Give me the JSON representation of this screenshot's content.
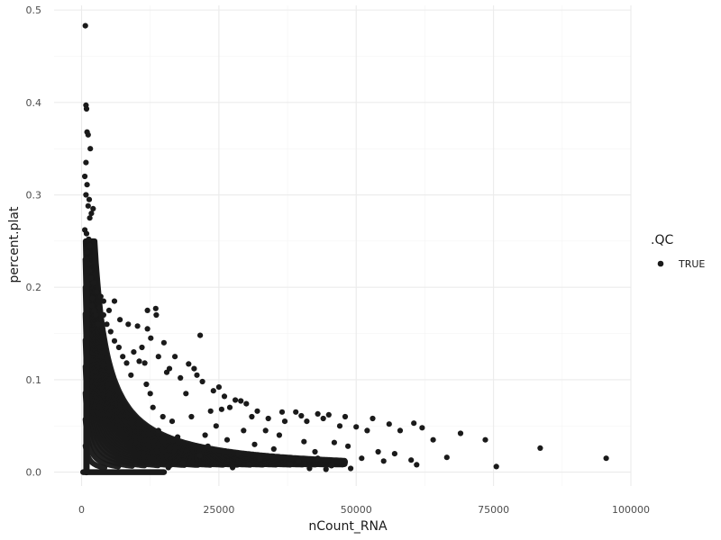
{
  "chart_data": {
    "type": "scatter",
    "xlabel": "nCount_RNA",
    "ylabel": "percent.plat",
    "xlim": [
      -5000,
      100000
    ],
    "ylim": [
      -0.015,
      0.505
    ],
    "x_ticks": [
      0,
      25000,
      50000,
      75000,
      100000
    ],
    "x_tick_labels": [
      "0",
      "25000",
      "50000",
      "75000",
      "100000"
    ],
    "y_ticks": [
      0.0,
      0.1,
      0.2,
      0.3,
      0.4,
      0.5
    ],
    "y_tick_labels": [
      "0.0",
      "0.1",
      "0.2",
      "0.3",
      "0.4",
      "0.5"
    ],
    "grid": true,
    "point_color": "#1a1a1a",
    "legend": {
      "title": ".QC",
      "placement": "right",
      "entries": [
        {
          "label": "TRUE",
          "color": "#1a1a1a"
        }
      ]
    },
    "series": [
      {
        "name": "TRUE",
        "points": [
          [
            700,
            0.483
          ],
          [
            800,
            0.397
          ],
          [
            900,
            0.393
          ],
          [
            1000,
            0.368
          ],
          [
            1200,
            0.365
          ],
          [
            1600,
            0.35
          ],
          [
            800,
            0.335
          ],
          [
            600,
            0.32
          ],
          [
            1000,
            0.311
          ],
          [
            800,
            0.3
          ],
          [
            1400,
            0.295
          ],
          [
            1200,
            0.288
          ],
          [
            2100,
            0.285
          ],
          [
            1800,
            0.28
          ],
          [
            1500,
            0.275
          ],
          [
            600,
            0.262
          ],
          [
            900,
            0.258
          ],
          [
            1300,
            0.252
          ],
          [
            1500,
            0.245
          ],
          [
            1000,
            0.238
          ],
          [
            700,
            0.23
          ],
          [
            1200,
            0.225
          ],
          [
            1400,
            0.218
          ],
          [
            1700,
            0.21
          ],
          [
            2200,
            0.205
          ],
          [
            900,
            0.2
          ],
          [
            2800,
            0.195
          ],
          [
            3500,
            0.19
          ],
          [
            2000,
            0.188
          ],
          [
            4000,
            0.185
          ],
          [
            6000,
            0.185
          ],
          [
            5000,
            0.175
          ],
          [
            7000,
            0.165
          ],
          [
            12000,
            0.175
          ],
          [
            13500,
            0.177
          ],
          [
            13600,
            0.17
          ],
          [
            8500,
            0.16
          ],
          [
            10200,
            0.158
          ],
          [
            12000,
            0.155
          ],
          [
            21600,
            0.148
          ],
          [
            12600,
            0.145
          ],
          [
            15000,
            0.14
          ],
          [
            11000,
            0.135
          ],
          [
            9500,
            0.13
          ],
          [
            17000,
            0.125
          ],
          [
            14000,
            0.125
          ],
          [
            10500,
            0.12
          ],
          [
            11500,
            0.118
          ],
          [
            19500,
            0.117
          ],
          [
            16000,
            0.112
          ],
          [
            20500,
            0.112
          ],
          [
            15500,
            0.108
          ],
          [
            21000,
            0.105
          ],
          [
            18000,
            0.102
          ],
          [
            22000,
            0.098
          ],
          [
            25000,
            0.092
          ],
          [
            24000,
            0.088
          ],
          [
            19000,
            0.085
          ],
          [
            26000,
            0.082
          ],
          [
            28000,
            0.078
          ],
          [
            29000,
            0.077
          ],
          [
            30000,
            0.074
          ],
          [
            27000,
            0.07
          ],
          [
            25500,
            0.068
          ],
          [
            23500,
            0.066
          ],
          [
            32000,
            0.066
          ],
          [
            36500,
            0.065
          ],
          [
            39000,
            0.065
          ],
          [
            40000,
            0.061
          ],
          [
            43000,
            0.063
          ],
          [
            45000,
            0.062
          ],
          [
            48000,
            0.06
          ],
          [
            53000,
            0.058
          ],
          [
            60500,
            0.053
          ],
          [
            31000,
            0.06
          ],
          [
            34000,
            0.058
          ],
          [
            37000,
            0.055
          ],
          [
            41000,
            0.055
          ],
          [
            44000,
            0.058
          ],
          [
            47000,
            0.05
          ],
          [
            50000,
            0.049
          ],
          [
            52000,
            0.045
          ],
          [
            56000,
            0.052
          ],
          [
            58000,
            0.045
          ],
          [
            62000,
            0.048
          ],
          [
            64000,
            0.035
          ],
          [
            69000,
            0.042
          ],
          [
            73500,
            0.035
          ],
          [
            83500,
            0.026
          ],
          [
            95500,
            0.015
          ],
          [
            75500,
            0.006
          ],
          [
            66500,
            0.016
          ],
          [
            61000,
            0.008
          ],
          [
            60000,
            0.013
          ],
          [
            57000,
            0.02
          ],
          [
            55000,
            0.012
          ],
          [
            54000,
            0.022
          ],
          [
            51000,
            0.015
          ],
          [
            49000,
            0.004
          ],
          [
            48500,
            0.028
          ],
          [
            46000,
            0.032
          ],
          [
            45500,
            0.007
          ],
          [
            44500,
            0.003
          ],
          [
            43000,
            0.015
          ],
          [
            42500,
            0.022
          ],
          [
            41500,
            0.004
          ],
          [
            40500,
            0.033
          ],
          [
            39500,
            0.012
          ],
          [
            38000,
            0.008
          ],
          [
            36000,
            0.04
          ],
          [
            35000,
            0.025
          ],
          [
            33500,
            0.045
          ],
          [
            32500,
            0.015
          ],
          [
            31500,
            0.03
          ],
          [
            30500,
            0.008
          ],
          [
            29500,
            0.045
          ],
          [
            28500,
            0.02
          ],
          [
            27500,
            0.005
          ],
          [
            26500,
            0.035
          ],
          [
            24500,
            0.05
          ],
          [
            23000,
            0.028
          ],
          [
            22500,
            0.04
          ],
          [
            21500,
            0.018
          ],
          [
            20000,
            0.06
          ],
          [
            18500,
            0.01
          ],
          [
            17500,
            0.038
          ],
          [
            16500,
            0.055
          ],
          [
            15800,
            0.005
          ],
          [
            14800,
            0.06
          ],
          [
            14000,
            0.045
          ],
          [
            13000,
            0.07
          ],
          [
            12500,
            0.085
          ],
          [
            11800,
            0.095
          ],
          [
            9000,
            0.105
          ],
          [
            8200,
            0.118
          ],
          [
            7500,
            0.125
          ],
          [
            6800,
            0.135
          ],
          [
            6000,
            0.142
          ],
          [
            5300,
            0.152
          ],
          [
            4600,
            0.16
          ],
          [
            4000,
            0.17
          ],
          [
            3300,
            0.178
          ],
          [
            3000,
            0.16
          ],
          [
            2600,
            0.17
          ],
          [
            2300,
            0.175
          ],
          [
            1900,
            0.18
          ]
        ]
      }
    ]
  }
}
